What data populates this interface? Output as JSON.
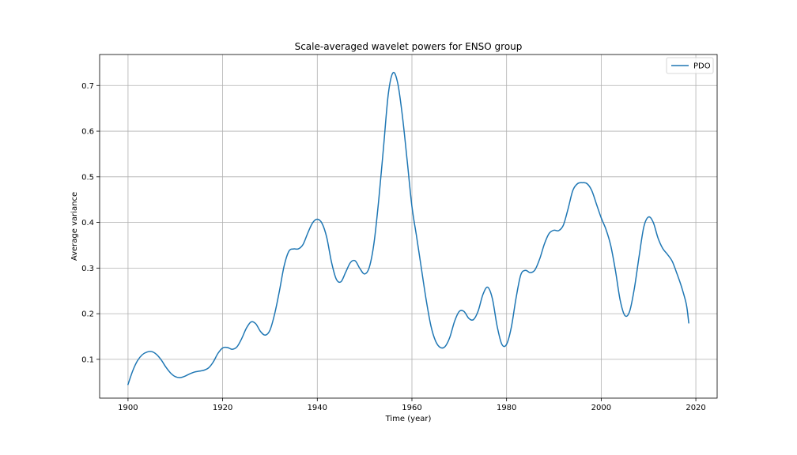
{
  "chart_data": {
    "type": "line",
    "title": "Scale-averaged wavelet powers for ENSO group",
    "xlabel": "Time (year)",
    "ylabel": "Average variance",
    "xlim": [
      1894,
      2024.5
    ],
    "ylim": [
      0.015,
      0.768
    ],
    "xticks": [
      1900,
      1920,
      1940,
      1960,
      1980,
      2000,
      2020
    ],
    "yticks": [
      0.1,
      0.2,
      0.3,
      0.4,
      0.5,
      0.6,
      0.7
    ],
    "grid": true,
    "legend_position": "upper right",
    "series": [
      {
        "name": "PDO",
        "color": "#1f77b4",
        "x": [
          1900,
          1901,
          1902,
          1903,
          1904,
          1905,
          1906,
          1907,
          1908,
          1909,
          1910,
          1911,
          1912,
          1913,
          1914,
          1915,
          1916,
          1917,
          1918,
          1919,
          1920,
          1921,
          1922,
          1923,
          1924,
          1925,
          1926,
          1927,
          1928,
          1929,
          1930,
          1931,
          1932,
          1933,
          1934,
          1935,
          1936,
          1937,
          1938,
          1939,
          1940,
          1941,
          1942,
          1943,
          1944,
          1945,
          1946,
          1947,
          1948,
          1949,
          1950,
          1951,
          1952,
          1953,
          1954,
          1955,
          1956,
          1957,
          1958,
          1959,
          1960,
          1961,
          1962,
          1963,
          1964,
          1965,
          1966,
          1967,
          1968,
          1969,
          1970,
          1971,
          1972,
          1973,
          1974,
          1975,
          1976,
          1977,
          1978,
          1979,
          1980,
          1981,
          1982,
          1983,
          1984,
          1985,
          1986,
          1987,
          1988,
          1989,
          1990,
          1991,
          1992,
          1993,
          1994,
          1995,
          1996,
          1997,
          1998,
          1999,
          2000,
          2001,
          2002,
          2003,
          2004,
          2005,
          2006,
          2007,
          2008,
          2009,
          2010,
          2011,
          2012,
          2013,
          2014,
          2015,
          2016,
          2017,
          2018,
          2018.5
        ],
        "y": [
          0.045,
          0.075,
          0.097,
          0.11,
          0.116,
          0.117,
          0.111,
          0.099,
          0.083,
          0.07,
          0.062,
          0.06,
          0.063,
          0.068,
          0.072,
          0.074,
          0.076,
          0.081,
          0.094,
          0.113,
          0.125,
          0.126,
          0.122,
          0.127,
          0.145,
          0.168,
          0.182,
          0.178,
          0.161,
          0.153,
          0.164,
          0.2,
          0.25,
          0.305,
          0.337,
          0.342,
          0.342,
          0.352,
          0.377,
          0.399,
          0.407,
          0.398,
          0.367,
          0.313,
          0.276,
          0.27,
          0.291,
          0.312,
          0.316,
          0.299,
          0.287,
          0.302,
          0.356,
          0.451,
          0.565,
          0.681,
          0.728,
          0.705,
          0.632,
          0.535,
          0.435,
          0.368,
          0.299,
          0.231,
          0.174,
          0.14,
          0.126,
          0.128,
          0.148,
          0.183,
          0.205,
          0.205,
          0.19,
          0.187,
          0.206,
          0.242,
          0.258,
          0.233,
          0.173,
          0.133,
          0.133,
          0.17,
          0.234,
          0.285,
          0.295,
          0.29,
          0.296,
          0.32,
          0.353,
          0.376,
          0.383,
          0.382,
          0.394,
          0.43,
          0.47,
          0.485,
          0.487,
          0.485,
          0.47,
          0.44,
          0.41,
          0.385,
          0.35,
          0.295,
          0.23,
          0.196,
          0.205,
          0.255,
          0.325,
          0.39,
          0.412,
          0.4,
          0.366,
          0.343,
          0.33,
          0.315,
          0.288,
          0.258,
          0.22,
          0.18
        ]
      }
    ]
  }
}
